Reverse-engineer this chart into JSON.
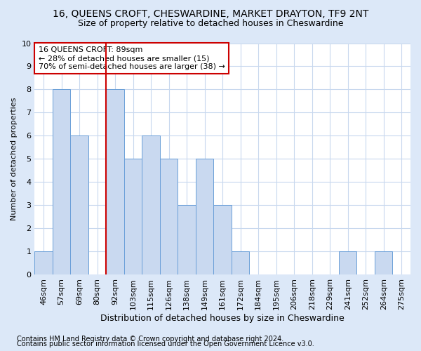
{
  "title1": "16, QUEENS CROFT, CHESWARDINE, MARKET DRAYTON, TF9 2NT",
  "title2": "Size of property relative to detached houses in Cheswardine",
  "xlabel": "Distribution of detached houses by size in Cheswardine",
  "ylabel": "Number of detached properties",
  "bin_labels": [
    "46sqm",
    "57sqm",
    "69sqm",
    "80sqm",
    "92sqm",
    "103sqm",
    "115sqm",
    "126sqm",
    "138sqm",
    "149sqm",
    "161sqm",
    "172sqm",
    "184sqm",
    "195sqm",
    "206sqm",
    "218sqm",
    "229sqm",
    "241sqm",
    "252sqm",
    "264sqm",
    "275sqm"
  ],
  "bar_values": [
    1,
    8,
    6,
    0,
    8,
    5,
    6,
    5,
    3,
    5,
    3,
    1,
    0,
    0,
    0,
    0,
    0,
    1,
    0,
    1,
    0
  ],
  "bar_color": "#c9d9f0",
  "bar_edge_color": "#6a9fd8",
  "vline_x_label": "92sqm",
  "vline_color": "#cc0000",
  "annotation_text": "16 QUEENS CROFT: 89sqm\n← 28% of detached houses are smaller (15)\n70% of semi-detached houses are larger (38) →",
  "annotation_box_color": "#cc0000",
  "ylim": [
    0,
    10
  ],
  "yticks": [
    0,
    1,
    2,
    3,
    4,
    5,
    6,
    7,
    8,
    9,
    10
  ],
  "footer1": "Contains HM Land Registry data © Crown copyright and database right 2024.",
  "footer2": "Contains public sector information licensed under the Open Government Licence v3.0.",
  "fig_bg_color": "#dce8f8",
  "plot_bg_color": "#ffffff",
  "title1_fontsize": 10,
  "title2_fontsize": 9,
  "xlabel_fontsize": 9,
  "ylabel_fontsize": 8,
  "tick_fontsize": 8,
  "annotation_fontsize": 8,
  "footer_fontsize": 7
}
